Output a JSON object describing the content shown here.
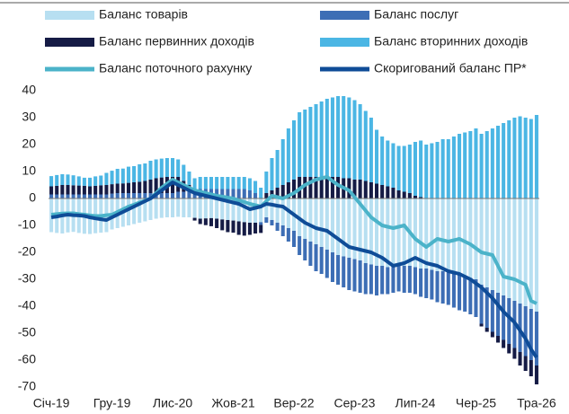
{
  "chart_data": {
    "type": "bar",
    "categories": [
      "Січ-19",
      null,
      null,
      null,
      null,
      null,
      null,
      null,
      null,
      null,
      null,
      "Гру-19",
      null,
      null,
      null,
      null,
      null,
      null,
      null,
      null,
      null,
      null,
      "Лис-20",
      null,
      null,
      null,
      null,
      null,
      null,
      null,
      null,
      null,
      null,
      "Жов-21",
      null,
      null,
      null,
      null,
      null,
      null,
      null,
      null,
      null,
      null,
      "Вер-22",
      null,
      null,
      null,
      null,
      null,
      null,
      null,
      null,
      null,
      null,
      "Сер-23",
      null,
      null,
      null,
      null,
      null,
      null,
      null,
      null,
      null,
      null,
      "Лип-24",
      null,
      null,
      null,
      null,
      null,
      null,
      null,
      null,
      null,
      null,
      "Чер-25",
      null,
      null,
      null,
      null,
      null,
      null,
      null,
      null,
      null,
      null,
      "Тра-26"
    ],
    "ylim": [
      -70,
      40
    ],
    "yticks": [
      40,
      30,
      20,
      10,
      0,
      -10,
      -20,
      -30,
      -40,
      -50,
      -60,
      -70
    ],
    "series": [
      {
        "name": "Баланс товарів",
        "type": "bar",
        "color": "#b7dff1",
        "values": [
          -12.5,
          -12.8,
          -13,
          -12.6,
          -12.4,
          -12.8,
          -13.1,
          -13.2,
          -12.9,
          -12.7,
          -12.5,
          -11.5,
          -11,
          -10.5,
          -10,
          -9.5,
          -9,
          -8.5,
          -8,
          -7.5,
          -7.2,
          -7,
          -7,
          -6.8,
          -7,
          -7,
          -7.2,
          -7.5,
          -7.4,
          -7.3,
          -7.5,
          -7.8,
          -8,
          -8.2,
          -8.5,
          -8.8,
          -9,
          -9,
          -8.8,
          -7,
          -8,
          -9,
          -10,
          -11,
          -12,
          -14,
          -15,
          -16,
          -17,
          -18,
          -19,
          -20,
          -21,
          -21.5,
          -22,
          -22.5,
          -23,
          -24,
          -24.5,
          -25,
          -25,
          -25.5,
          -25,
          -24.5,
          -25,
          -25,
          -25.5,
          -26,
          -26,
          -26.5,
          -27,
          -27,
          -27.5,
          -28,
          -28.5,
          -29,
          -29.5,
          -30,
          -32,
          -33,
          -34,
          -35,
          -36,
          -37,
          -38,
          -39,
          -40,
          -41,
          -42
        ]
      },
      {
        "name": "Баланс послуг",
        "type": "bar",
        "color": "#3d6eb5",
        "values": [
          1.5,
          1.5,
          1.5,
          1.5,
          1.5,
          1.5,
          1.5,
          1.5,
          1.5,
          1.5,
          1.5,
          1.8,
          2,
          2,
          2,
          2,
          2,
          2,
          2,
          2,
          2,
          2,
          2,
          2.5,
          2.5,
          3,
          3,
          3.5,
          3.5,
          3.5,
          3.5,
          3.5,
          3.5,
          3.5,
          3.5,
          3.5,
          3,
          2,
          -1,
          -2,
          -2,
          -3,
          -4,
          -5,
          -6,
          -7,
          -8,
          -9,
          -10,
          -10,
          -10.5,
          -11,
          -11,
          -11.5,
          -12,
          -12,
          -12,
          -11.5,
          -11,
          -11,
          -10.5,
          -10,
          -10,
          -10,
          -10,
          -10,
          -10,
          -10.5,
          -11,
          -11,
          -11.5,
          -12,
          -12,
          -12.5,
          -13,
          -13,
          -13.5,
          -14,
          -14.5,
          -15,
          -15.5,
          -16,
          -16.5,
          -17,
          -17.5,
          -18,
          -18.5,
          -19,
          -20
        ]
      },
      {
        "name": "Баланс первинних доходів",
        "type": "bar",
        "color": "#151b45",
        "values": [
          3,
          3.2,
          3.5,
          3.5,
          3.4,
          3.3,
          3.2,
          3,
          3.2,
          3.4,
          3.5,
          3.5,
          3.5,
          3.6,
          3.8,
          4,
          4.2,
          4.5,
          5,
          5.5,
          5.8,
          6,
          6,
          5.5,
          4,
          2,
          -1,
          -2,
          -2.5,
          -3,
          -3.5,
          -4,
          -4.5,
          -4.5,
          -5,
          -5,
          -4.5,
          -4,
          -3,
          2,
          3,
          4,
          5,
          6,
          7,
          8,
          8,
          8,
          8,
          8,
          8,
          8,
          8,
          7.5,
          7.5,
          7,
          7,
          6.5,
          6,
          5.5,
          5,
          4.5,
          4,
          3,
          2.5,
          2,
          1,
          0.5,
          0,
          0,
          0,
          0,
          0,
          0,
          0,
          0,
          0,
          0,
          -1,
          -1.5,
          -2,
          -2.5,
          -3,
          -3.5,
          -4,
          -5,
          -5.5,
          -6,
          -7
        ]
      },
      {
        "name": "Баланс вторинних доходів",
        "type": "bar",
        "color": "#4bb6e4",
        "values": [
          3.8,
          4,
          4,
          3.9,
          3.7,
          3.4,
          3,
          3.2,
          3.5,
          3.6,
          4.5,
          5,
          5.5,
          5.5,
          6,
          6,
          6.5,
          6.5,
          7,
          7,
          7,
          7,
          7,
          6.5,
          6,
          5,
          4.5,
          4.5,
          4.5,
          4.5,
          4.5,
          4.5,
          4.5,
          4.5,
          4.5,
          4.5,
          4.5,
          4.5,
          4,
          8,
          12,
          14,
          17,
          20,
          22,
          24,
          25,
          26,
          27,
          28,
          29,
          29.5,
          30,
          30.5,
          30,
          29.5,
          28,
          26,
          24,
          20,
          18,
          17,
          16.5,
          16.5,
          17,
          18,
          20,
          21,
          20,
          20.5,
          21,
          22,
          22,
          23,
          24,
          24.5,
          25,
          26,
          24,
          25,
          26,
          27,
          28,
          29,
          30,
          30.5,
          30,
          29.5,
          31
        ]
      },
      {
        "name": "Баланс поточного рахунку",
        "type": "line",
        "color": "#4bb3c9",
        "values": [
          -6,
          -5.8,
          -5.6,
          -5.5,
          -5.5,
          -5.8,
          -6,
          -6.3,
          -6.5,
          -6.5,
          -6.2,
          -6,
          -5,
          -4,
          -3,
          -2.3,
          -1.5,
          -0.8,
          0,
          2,
          4,
          5.5,
          7,
          6,
          5,
          4,
          3,
          2.5,
          2,
          1.5,
          1,
          0.7,
          0.3,
          0,
          -0.7,
          -1.3,
          -2,
          -2.5,
          -3,
          -1,
          1,
          0.5,
          0,
          1,
          2,
          3.5,
          5,
          6,
          7,
          7.5,
          8,
          6.5,
          5,
          4,
          3,
          0.5,
          -2,
          -4.5,
          -7,
          -8.5,
          -10,
          -10.5,
          -11,
          -10.5,
          -10,
          -12.5,
          -15,
          -16.5,
          -18,
          -16.5,
          -15,
          -15.5,
          -16,
          -15.5,
          -15,
          -16,
          -17,
          -18.5,
          -20,
          -20.5,
          -21,
          -25,
          -29,
          -29.5,
          -30,
          -31,
          -32,
          -38,
          -39
        ]
      },
      {
        "name": "Скоригований баланс ПР*",
        "type": "line",
        "color": "#0f4c97",
        "values": [
          -7,
          -6.7,
          -6.3,
          -6,
          -6.2,
          -6.3,
          -6.5,
          -7,
          -7.4,
          -7.7,
          -8,
          -7,
          -6,
          -5,
          -4,
          -3,
          -2,
          -1,
          0,
          1.5,
          3,
          4.5,
          6,
          5,
          4,
          3,
          2,
          1.5,
          1,
          0.5,
          0,
          -0.5,
          -1,
          -1.5,
          -2,
          -3,
          -4,
          -3.5,
          -3,
          -2,
          -2.3,
          -2.7,
          -3,
          -4.5,
          -6,
          -7.5,
          -9,
          -10,
          -11,
          -11.5,
          -12,
          -13.5,
          -15,
          -16.5,
          -18,
          -18.5,
          -19,
          -19.5,
          -20,
          -21,
          -22,
          -23.5,
          -25,
          -24.5,
          -24,
          -23,
          -22,
          -23,
          -24,
          -24.5,
          -25,
          -26,
          -27,
          -27.5,
          -28,
          -29,
          -30,
          -31.5,
          -33,
          -35,
          -37,
          -39.5,
          -42,
          -44,
          -46,
          -49,
          -52,
          -56,
          -59
        ]
      }
    ]
  }
}
